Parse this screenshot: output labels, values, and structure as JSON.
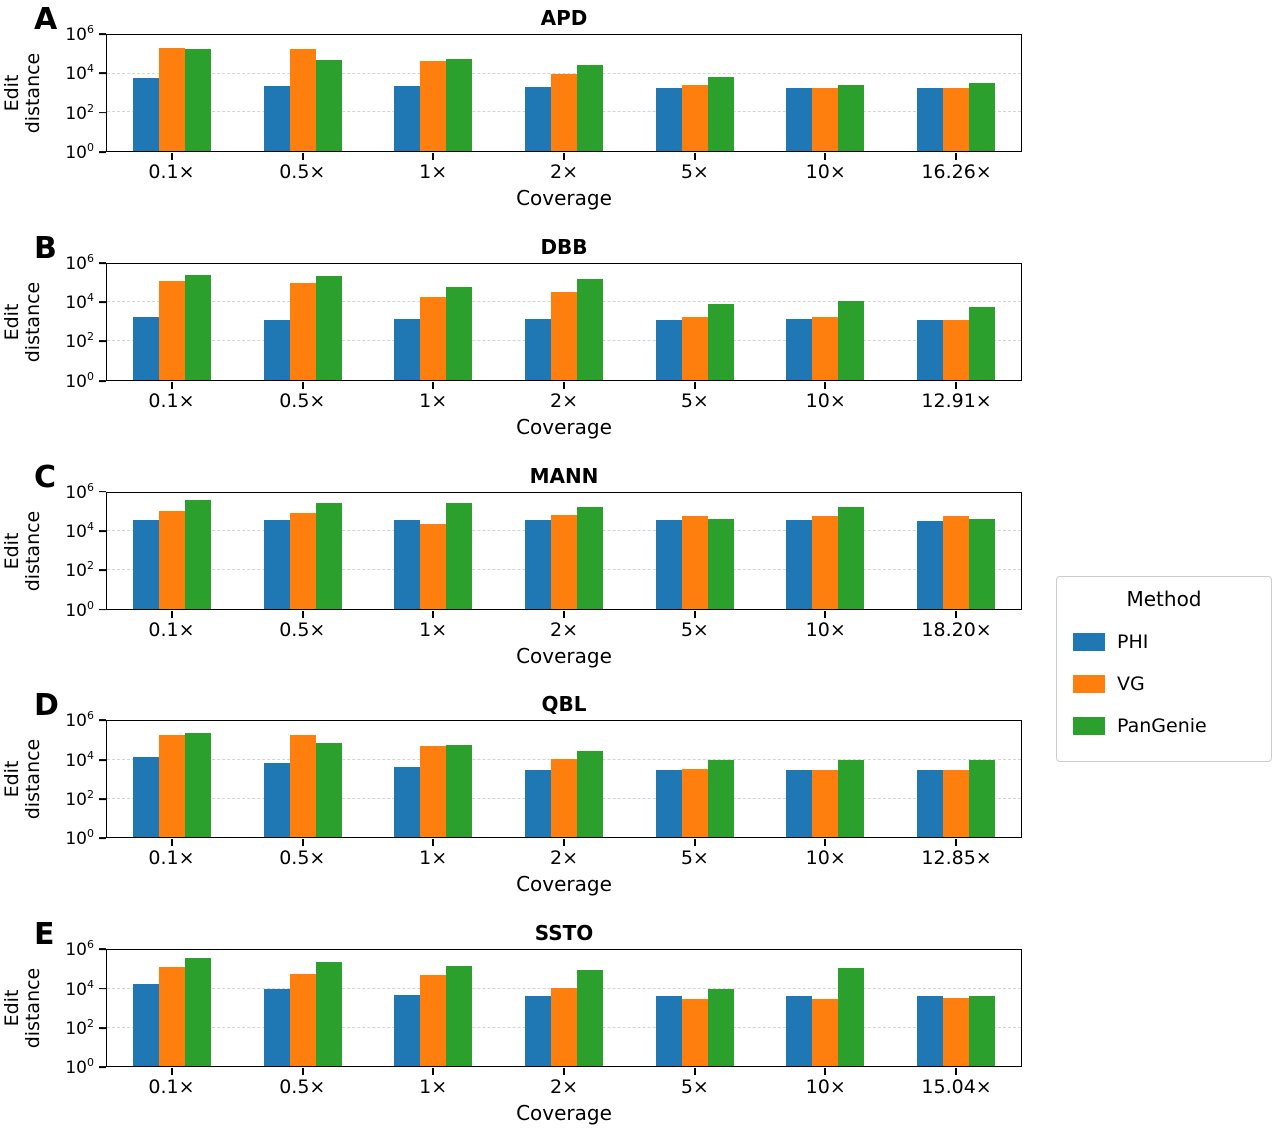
{
  "figure": {
    "background": "#ffffff"
  },
  "legend": {
    "title": "Method",
    "entries": [
      {
        "label": "PHI",
        "color": "#1f77b4"
      },
      {
        "label": "VG",
        "color": "#ff7f0e"
      },
      {
        "label": "PanGenie",
        "color": "#2ca02c"
      }
    ]
  },
  "chart_data": [
    {
      "type": "bar",
      "panel_label": "A",
      "title": "APD",
      "xlabel": "Coverage",
      "ylabel": "Edit\ndistance",
      "yscale": "log",
      "ylim": [
        1,
        1000000
      ],
      "ytick_exponents": [
        0,
        2,
        4,
        6
      ],
      "gridline_exponents": [
        2,
        4
      ],
      "categories": [
        "0.1×",
        "0.5×",
        "1×",
        "2×",
        "5×",
        "10×",
        "16.26×"
      ],
      "series": [
        {
          "name": "PHI",
          "color": "#1f77b4",
          "values": [
            6000,
            2300,
            2200,
            2000,
            1800,
            1800,
            1800
          ]
        },
        {
          "name": "VG",
          "color": "#ff7f0e",
          "values": [
            210000,
            190000,
            45000,
            10000,
            2500,
            1800,
            1800
          ]
        },
        {
          "name": "PanGenie",
          "color": "#2ca02c",
          "values": [
            180000,
            50000,
            55000,
            28000,
            7000,
            2700,
            3200
          ]
        }
      ]
    },
    {
      "type": "bar",
      "panel_label": "B",
      "title": "DBB",
      "xlabel": "Coverage",
      "ylabel": "Edit\ndistance",
      "yscale": "log",
      "ylim": [
        1,
        1000000
      ],
      "ytick_exponents": [
        0,
        2,
        4,
        6
      ],
      "gridline_exponents": [
        2,
        4
      ],
      "categories": [
        "0.1×",
        "0.5×",
        "1×",
        "2×",
        "5×",
        "10×",
        "12.91×"
      ],
      "series": [
        {
          "name": "PHI",
          "color": "#1f77b4",
          "values": [
            1800,
            1300,
            1400,
            1400,
            1300,
            1400,
            1300
          ]
        },
        {
          "name": "VG",
          "color": "#ff7f0e",
          "values": [
            130000,
            100000,
            20000,
            35000,
            1800,
            1700,
            1300
          ]
        },
        {
          "name": "PanGenie",
          "color": "#2ca02c",
          "values": [
            280000,
            230000,
            65000,
            160000,
            8500,
            12000,
            6000
          ]
        }
      ]
    },
    {
      "type": "bar",
      "panel_label": "C",
      "title": "MANN",
      "xlabel": "Coverage",
      "ylabel": "Edit\ndistance",
      "yscale": "log",
      "ylim": [
        1,
        1000000
      ],
      "ytick_exponents": [
        0,
        2,
        4,
        6
      ],
      "gridline_exponents": [
        2,
        4
      ],
      "categories": [
        "0.1×",
        "0.5×",
        "1×",
        "2×",
        "5×",
        "10×",
        "18.20×"
      ],
      "series": [
        {
          "name": "PHI",
          "color": "#1f77b4",
          "values": [
            40000,
            40000,
            40000,
            40000,
            40000,
            40000,
            35000
          ]
        },
        {
          "name": "VG",
          "color": "#ff7f0e",
          "values": [
            110000,
            90000,
            25000,
            70000,
            65000,
            60000,
            60000
          ]
        },
        {
          "name": "PanGenie",
          "color": "#2ca02c",
          "values": [
            400000,
            300000,
            280000,
            180000,
            45000,
            170000,
            45000
          ]
        }
      ]
    },
    {
      "type": "bar",
      "panel_label": "D",
      "title": "QBL",
      "xlabel": "Coverage",
      "ylabel": "Edit\ndistance",
      "yscale": "log",
      "ylim": [
        1,
        1000000
      ],
      "ytick_exponents": [
        0,
        2,
        4,
        6
      ],
      "gridline_exponents": [
        2,
        4
      ],
      "categories": [
        "0.1×",
        "0.5×",
        "1×",
        "2×",
        "5×",
        "10×",
        "12.85×"
      ],
      "series": [
        {
          "name": "PHI",
          "color": "#1f77b4",
          "values": [
            14000,
            7000,
            4500,
            3200,
            3000,
            3000,
            3000
          ]
        },
        {
          "name": "VG",
          "color": "#ff7f0e",
          "values": [
            200000,
            190000,
            55000,
            11000,
            3500,
            3000,
            3000
          ]
        },
        {
          "name": "PanGenie",
          "color": "#2ca02c",
          "values": [
            260000,
            80000,
            60000,
            28000,
            10000,
            10000,
            10000
          ]
        }
      ]
    },
    {
      "type": "bar",
      "panel_label": "E",
      "title": "SSTO",
      "xlabel": "Coverage",
      "ylabel": "Edit\ndistance",
      "yscale": "log",
      "ylim": [
        1,
        1000000
      ],
      "ytick_exponents": [
        0,
        2,
        4,
        6
      ],
      "gridline_exponents": [
        2,
        4
      ],
      "categories": [
        "0.1×",
        "0.5×",
        "1×",
        "2×",
        "5×",
        "10×",
        "15.04×"
      ],
      "series": [
        {
          "name": "PHI",
          "color": "#1f77b4",
          "values": [
            18000,
            10000,
            5000,
            4500,
            4500,
            4500,
            4500
          ]
        },
        {
          "name": "VG",
          "color": "#ff7f0e",
          "values": [
            130000,
            60000,
            50000,
            11000,
            3000,
            3000,
            3500
          ]
        },
        {
          "name": "PanGenie",
          "color": "#2ca02c",
          "values": [
            400000,
            260000,
            160000,
            100000,
            10000,
            120000,
            4500
          ]
        }
      ]
    }
  ]
}
